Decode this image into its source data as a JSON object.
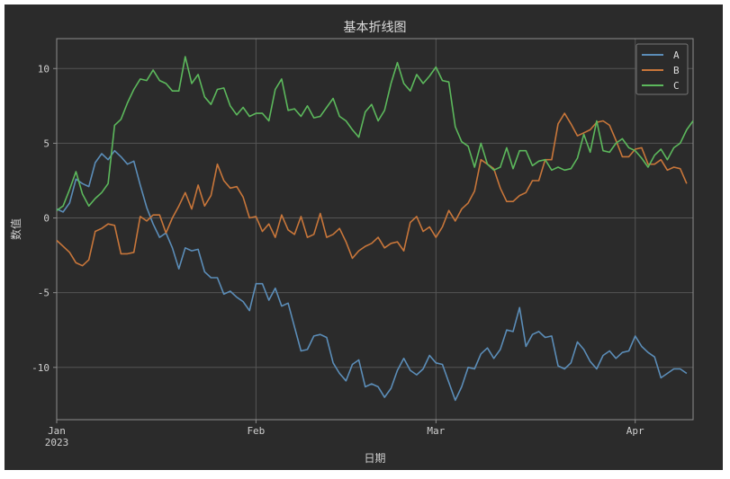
{
  "chart_data": {
    "type": "line",
    "title": "基本折线图",
    "xlabel": "日期",
    "ylabel": "数值",
    "ylim": [
      -13.5,
      12
    ],
    "xlim": [
      "2023-01-01",
      "2023-04-10"
    ],
    "x_ticks": [
      {
        "date": "2023-01-01",
        "label": "Jan",
        "sublabel": "2023"
      },
      {
        "date": "2023-02-01",
        "label": "Feb",
        "sublabel": ""
      },
      {
        "date": "2023-03-01",
        "label": "Mar",
        "sublabel": ""
      },
      {
        "date": "2023-04-01",
        "label": "Apr",
        "sublabel": ""
      }
    ],
    "y_ticks": [
      10,
      5,
      0,
      -5,
      -10
    ],
    "y_tick_labels": [
      "10",
      "5",
      "0",
      "-5",
      "-10"
    ],
    "grid": true,
    "legend_position": "top-right",
    "x_start": "2023-01-01",
    "series": [
      {
        "name": "A",
        "color": "#5b8db8",
        "values": [
          0.6,
          0.4,
          1.0,
          2.6,
          2.3,
          2.1,
          3.7,
          4.3,
          3.9,
          4.5,
          4.1,
          3.6,
          3.8,
          2.2,
          0.7,
          -0.4,
          -1.3,
          -1.0,
          -2.0,
          -3.4,
          -2.0,
          -2.2,
          -2.1,
          -3.6,
          -4.0,
          -4.0,
          -5.1,
          -4.9,
          -5.3,
          -5.6,
          -6.2,
          -4.4,
          -4.4,
          -5.5,
          -4.7,
          -5.9,
          -5.7,
          -7.3,
          -8.9,
          -8.8,
          -7.9,
          -7.8,
          -8.0,
          -9.7,
          -10.4,
          -10.9,
          -9.8,
          -9.5,
          -11.3,
          -11.1,
          -11.3,
          -12.0,
          -11.4,
          -10.2,
          -9.4,
          -10.2,
          -10.5,
          -10.1,
          -9.2,
          -9.7,
          -9.8,
          -11.0,
          -12.2,
          -11.3,
          -10.0,
          -10.1,
          -9.1,
          -8.7,
          -9.4,
          -8.8,
          -7.5,
          -7.6,
          -6.0,
          -8.6,
          -7.8,
          -7.6,
          -8.0,
          -7.9,
          -9.9,
          -10.1,
          -9.7,
          -8.3,
          -8.8,
          -9.6,
          -10.1,
          -9.2,
          -8.9,
          -9.4,
          -9.0,
          -8.9,
          -7.9,
          -8.6,
          -9.0,
          -9.3,
          -10.7,
          -10.4,
          -10.1,
          -10.1,
          -10.4
        ]
      },
      {
        "name": "B",
        "color": "#c8763a",
        "values": [
          -1.5,
          -1.9,
          -2.3,
          -3.0,
          -3.2,
          -2.8,
          -0.9,
          -0.7,
          -0.4,
          -0.5,
          -2.4,
          -2.4,
          -2.3,
          0.1,
          -0.2,
          0.2,
          0.2,
          -1.0,
          0.0,
          0.8,
          1.7,
          0.6,
          2.2,
          0.8,
          1.5,
          3.6,
          2.5,
          2.0,
          2.1,
          1.4,
          0.0,
          0.1,
          -0.9,
          -0.4,
          -1.3,
          0.2,
          -0.8,
          -1.1,
          0.1,
          -1.3,
          -1.1,
          0.3,
          -1.3,
          -1.1,
          -0.7,
          -1.6,
          -2.7,
          -2.2,
          -1.9,
          -1.7,
          -1.3,
          -2.0,
          -1.7,
          -1.6,
          -2.2,
          -0.3,
          0.1,
          -0.9,
          -0.6,
          -1.3,
          -0.6,
          0.5,
          -0.2,
          0.6,
          1.0,
          1.8,
          3.9,
          3.6,
          3.3,
          2.0,
          1.1,
          1.1,
          1.5,
          1.7,
          2.5,
          2.5,
          3.9,
          3.9,
          6.3,
          7.0,
          6.3,
          5.5,
          5.7,
          5.9,
          6.4,
          6.5,
          6.2,
          5.2,
          4.1,
          4.1,
          4.6,
          4.7,
          3.6,
          3.6,
          3.9,
          3.2,
          3.4,
          3.3,
          2.3
        ]
      },
      {
        "name": "C",
        "color": "#5cb85c",
        "values": [
          0.5,
          0.8,
          1.9,
          3.1,
          1.6,
          0.8,
          1.3,
          1.7,
          2.3,
          6.2,
          6.6,
          7.7,
          8.6,
          9.3,
          9.2,
          9.9,
          9.2,
          9.0,
          8.5,
          8.5,
          10.8,
          9.0,
          9.6,
          8.1,
          7.6,
          8.6,
          8.7,
          7.5,
          6.9,
          7.4,
          6.8,
          7.0,
          7.0,
          6.5,
          8.6,
          9.3,
          7.2,
          7.3,
          6.8,
          7.5,
          6.7,
          6.8,
          7.4,
          8.0,
          6.8,
          6.5,
          5.9,
          5.4,
          7.1,
          7.6,
          6.5,
          7.2,
          9.0,
          10.4,
          9.0,
          8.5,
          9.6,
          9.0,
          9.5,
          10.1,
          9.2,
          9.1,
          6.1,
          5.1,
          4.8,
          3.4,
          5.0,
          3.6,
          3.2,
          3.4,
          4.7,
          3.3,
          4.5,
          4.5,
          3.5,
          3.8,
          3.9,
          3.2,
          3.4,
          3.2,
          3.3,
          4.0,
          5.6,
          4.4,
          6.5,
          4.5,
          4.4,
          5.0,
          5.3,
          4.7,
          4.5,
          4.0,
          3.4,
          4.2,
          4.6,
          3.9,
          4.7,
          5.0,
          5.9,
          6.5
        ]
      }
    ]
  }
}
